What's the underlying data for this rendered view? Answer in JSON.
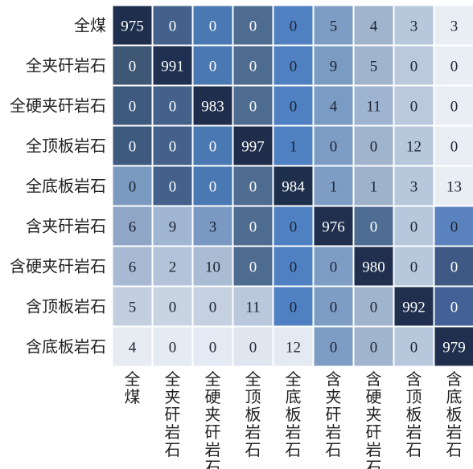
{
  "chart_data": {
    "type": "heatmap",
    "row_labels": [
      "全煤",
      "全夹矸岩石",
      "全硬夹矸岩石",
      "全顶板岩石",
      "全底板岩石",
      "含夹矸岩石",
      "含硬夹矸岩石",
      "含顶板岩石",
      "含底板岩石"
    ],
    "col_labels": [
      "全煤",
      "全夹矸岩石",
      "全硬夹矸岩石",
      "全顶板岩石",
      "全底板岩石",
      "含夹矸岩石",
      "含硬夹矸岩石",
      "含顶板岩石",
      "含底板岩石"
    ],
    "matrix": [
      [
        975,
        0,
        0,
        0,
        0,
        5,
        4,
        3,
        3
      ],
      [
        0,
        991,
        0,
        0,
        0,
        9,
        5,
        0,
        0
      ],
      [
        0,
        0,
        983,
        0,
        0,
        4,
        11,
        0,
        0
      ],
      [
        0,
        0,
        0,
        997,
        1,
        0,
        0,
        12,
        0
      ],
      [
        0,
        0,
        0,
        0,
        984,
        1,
        1,
        3,
        13
      ],
      [
        6,
        9,
        3,
        0,
        0,
        976,
        0,
        0,
        0
      ],
      [
        6,
        2,
        10,
        0,
        0,
        0,
        980,
        0,
        0
      ],
      [
        5,
        0,
        0,
        11,
        0,
        0,
        0,
        992,
        0
      ],
      [
        4,
        0,
        0,
        0,
        12,
        0,
        0,
        0,
        979
      ]
    ],
    "cell_colors": [
      [
        "#1e2f4d",
        "#43618a",
        "#4a78b2",
        "#4e6b90",
        "#4f80c2",
        "#7d9dc5",
        "#a1b4cd",
        "#b7c8dd",
        "#e9eef5"
      ],
      [
        "#3e5774",
        "#1f3050",
        "#4a78b2",
        "#4e6b90",
        "#4f80c2",
        "#7a9bc2",
        "#a1b4cd",
        "#bac9dc",
        "#e9eef5"
      ],
      [
        "#3e5a7e",
        "#43618a",
        "#1f2e4c",
        "#4e6b90",
        "#4f80c2",
        "#7a9bc4",
        "#9fb4d0",
        "#bac9dc",
        "#e9eef5"
      ],
      [
        "#3e5a7e",
        "#43618a",
        "#4a78b2",
        "#1f2d4a",
        "#4f80c2",
        "#7d9dc5",
        "#a1b4cd",
        "#b7c8dd",
        "#e9eef5"
      ],
      [
        "#7b9ac0",
        "#43618a",
        "#4a78b2",
        "#4e6b90",
        "#1e2f4c",
        "#7d9dc5",
        "#9eb2cb",
        "#b7c8dd",
        "#e9eef5"
      ],
      [
        "#8fa6c6",
        "#a1b6d2",
        "#7a99c2",
        "#4e6b90",
        "#4f80c2",
        "#1f2f4d",
        "#4f6c92",
        "#b7c8dd",
        "#5a82be"
      ],
      [
        "#a8bad3",
        "#b3c4da",
        "#a9bcd4",
        "#4e6b90",
        "#4f80c2",
        "#7d9dc5",
        "#1f2f4d",
        "#b7c8dd",
        "#3e5a84"
      ],
      [
        "#c3cfdf",
        "#c9d4e3",
        "#c5d0e0",
        "#b9c8dc",
        "#4f80c2",
        "#7d9dc5",
        "#a1b4cd",
        "#1f2f4d",
        "#436196"
      ],
      [
        "#e7ecf3",
        "#e5ebf3",
        "#e4eaf3",
        "#dfe6f0",
        "#e4eaf2",
        "#7d9dc5",
        "#a1b4cd",
        "#b7c8dd",
        "#1f2f4d"
      ]
    ]
  }
}
